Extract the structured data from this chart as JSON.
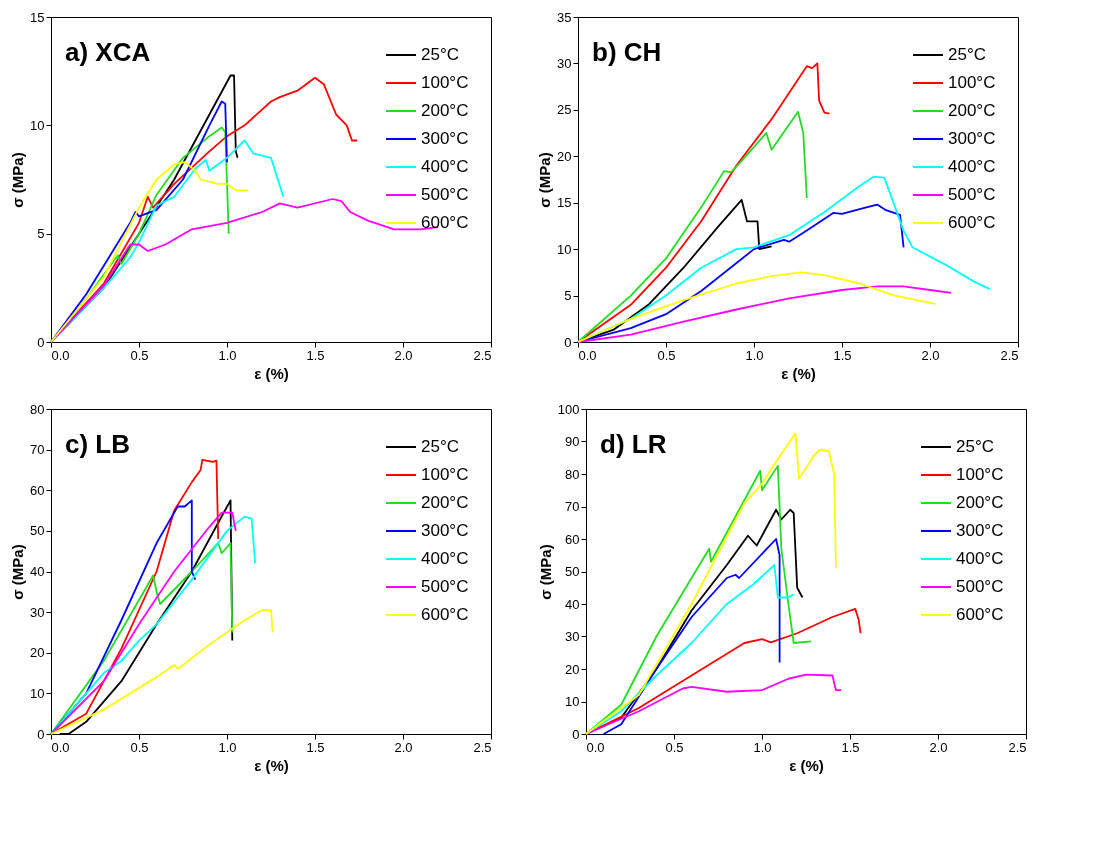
{
  "chart_data": [
    {
      "type": "line",
      "title": "a) XCA",
      "xlabel": "ε (%)",
      "ylabel": "σ (MPa)",
      "legend": "top right",
      "grid": false,
      "xlim": [
        0,
        2.5
      ],
      "xticks": [
        {
          "value": 0,
          "label": "0.0"
        },
        0.5,
        {
          "value": 1,
          "label": "1.0"
        },
        1.5,
        {
          "value": 2,
          "label": "2.0"
        },
        2.5
      ],
      "ylim": [
        0,
        15
      ],
      "yticks": [
        0,
        5,
        10,
        15
      ],
      "series": [
        {
          "name": " 25°C",
          "color": "#000000",
          "x": [
            0,
            0.3,
            0.5,
            0.7,
            0.9,
            1.02,
            1.04,
            1.05,
            1.06
          ],
          "values": [
            0,
            2.5,
            5,
            7.5,
            10.5,
            12.3,
            12.3,
            8.8,
            8.5
          ]
        },
        {
          "name": "100°C",
          "color": "#ff0000",
          "x": [
            0,
            0.3,
            0.5,
            0.55,
            0.58,
            0.7,
            0.9,
            1.0,
            1.1,
            1.25,
            1.3,
            1.4,
            1.5,
            1.55,
            1.62,
            1.68,
            1.71,
            1.74
          ],
          "values": [
            0,
            2.7,
            5.5,
            6.7,
            6.2,
            7.3,
            8.8,
            9.5,
            10,
            11.1,
            11.3,
            11.6,
            12.2,
            11.9,
            10.5,
            10,
            9.3,
            9.3
          ]
        },
        {
          "name": "200°C",
          "color": "#22dd22",
          "x": [
            0,
            0.2,
            0.38,
            0.4,
            0.5,
            0.6,
            0.75,
            0.9,
            0.97,
            0.99,
            1.01
          ],
          "values": [
            0,
            2,
            4,
            3.6,
            5,
            6.8,
            8.5,
            9.5,
            9.9,
            9.7,
            5
          ]
        },
        {
          "name": "300°C",
          "color": "#0000ff",
          "x": [
            0,
            0.2,
            0.45,
            0.48,
            0.5,
            0.6,
            0.75,
            0.9,
            0.97,
            0.99,
            1.0
          ],
          "values": [
            0,
            2.2,
            5.5,
            6,
            5.8,
            6.1,
            7.5,
            10,
            11.1,
            11,
            8.3
          ]
        },
        {
          "name": "400°C",
          "color": "#00ffff",
          "x": [
            0,
            0.3,
            0.45,
            0.5,
            0.6,
            0.7,
            0.82,
            0.88,
            0.9,
            1.0,
            1.1,
            1.15,
            1.25,
            1.32
          ],
          "values": [
            0,
            2.5,
            3.9,
            4.6,
            6.3,
            6.7,
            8,
            8.4,
            7.9,
            8.5,
            9.3,
            8.7,
            8.5,
            6.7
          ]
        },
        {
          "name": "500°C",
          "color": "#ff00ff",
          "x": [
            0,
            0.3,
            0.45,
            0.5,
            0.55,
            0.65,
            0.8,
            1.0,
            1.2,
            1.3,
            1.4,
            1.6,
            1.65,
            1.7,
            1.8,
            1.95,
            2.1,
            2.2
          ],
          "values": [
            0,
            2.6,
            4.5,
            4.5,
            4.2,
            4.5,
            5.2,
            5.5,
            6,
            6.4,
            6.2,
            6.6,
            6.5,
            6,
            5.6,
            5.2,
            5.2,
            5.3
          ]
        },
        {
          "name": "600°C",
          "color": "#ffff00",
          "x": [
            0,
            0.3,
            0.5,
            0.6,
            0.7,
            0.76,
            0.82,
            0.85,
            0.95,
            1.0,
            1.05,
            1.12
          ],
          "values": [
            0,
            3,
            6.2,
            7.5,
            8.2,
            8.3,
            7.9,
            7.5,
            7.3,
            7.3,
            7,
            7
          ]
        }
      ]
    },
    {
      "type": "line",
      "title": "b) CH",
      "xlabel": "ε (%)",
      "ylabel": "σ (MPa)",
      "legend": "top right",
      "grid": false,
      "xlim": [
        0,
        2.5
      ],
      "xticks": [
        {
          "value": 0,
          "label": "0.0"
        },
        0.5,
        {
          "value": 1,
          "label": "1.0"
        },
        1.5,
        {
          "value": 2,
          "label": "2.0"
        },
        2.5
      ],
      "ylim": [
        0,
        35
      ],
      "yticks": [
        0,
        5,
        10,
        15,
        20,
        25,
        30,
        35
      ],
      "series": [
        {
          "name": " 25°C",
          "color": "#000000",
          "x": [
            0,
            0.2,
            0.4,
            0.6,
            0.8,
            0.93,
            0.96,
            1.02,
            1.03,
            1.1
          ],
          "values": [
            0,
            1.3,
            4,
            8,
            12.5,
            15.3,
            13,
            13,
            10,
            10.3
          ]
        },
        {
          "name": "100°C",
          "color": "#ff0000",
          "x": [
            0,
            0.3,
            0.5,
            0.7,
            0.9,
            1.1,
            1.3,
            1.33,
            1.36,
            1.37,
            1.4,
            1.43
          ],
          "values": [
            0,
            4,
            8,
            13,
            19,
            24,
            29.7,
            29.5,
            30,
            26,
            24.7,
            24.6
          ]
        },
        {
          "name": "200°C",
          "color": "#22dd22",
          "x": [
            0,
            0.3,
            0.5,
            0.7,
            0.83,
            0.87,
            0.93,
            1.07,
            1.1,
            1.25,
            1.28,
            1.3
          ],
          "values": [
            0,
            5,
            9,
            14.5,
            18.4,
            18.3,
            19.5,
            22.5,
            20.7,
            24.8,
            22.5,
            15.5
          ]
        },
        {
          "name": "300°C",
          "color": "#0000ff",
          "x": [
            0,
            0.3,
            0.5,
            0.7,
            1.0,
            1.17,
            1.2,
            1.3,
            1.45,
            1.5,
            1.6,
            1.7,
            1.75,
            1.83,
            1.85
          ],
          "values": [
            0,
            1.5,
            3,
            5.5,
            10,
            11,
            10.8,
            12,
            13.9,
            13.8,
            14.3,
            14.8,
            14.2,
            13.7,
            10.2
          ]
        },
        {
          "name": "400°C",
          "color": "#00ffff",
          "x": [
            0,
            0.3,
            0.5,
            0.7,
            0.9,
            1.0,
            1.2,
            1.4,
            1.6,
            1.68,
            1.74,
            1.85,
            1.9,
            2.1,
            2.25,
            2.34
          ],
          "values": [
            0,
            2.5,
            5,
            8,
            10,
            10.2,
            11.5,
            14,
            16.8,
            17.8,
            17.7,
            12,
            10.2,
            8.2,
            6.5,
            5.7
          ]
        },
        {
          "name": "500°C",
          "color": "#ff00ff",
          "x": [
            0,
            0.3,
            0.6,
            0.9,
            1.2,
            1.5,
            1.7,
            1.85,
            2.0,
            2.12
          ],
          "values": [
            0,
            0.8,
            2.2,
            3.5,
            4.7,
            5.6,
            6,
            6,
            5.6,
            5.3
          ]
        },
        {
          "name": "600°C",
          "color": "#ffff00",
          "x": [
            0,
            0.3,
            0.6,
            0.9,
            1.1,
            1.27,
            1.4,
            1.6,
            1.8,
            2.03
          ],
          "values": [
            0,
            2.5,
            4.5,
            6.3,
            7.1,
            7.5,
            7.2,
            6.3,
            5,
            4.1
          ]
        }
      ]
    },
    {
      "type": "line",
      "title": "c) LB",
      "xlabel": "ε (%)",
      "ylabel": "σ (MPa)",
      "legend": "top right",
      "grid": false,
      "xlim": [
        0,
        2.5
      ],
      "xticks": [
        {
          "value": 0,
          "label": "0.0"
        },
        0.5,
        {
          "value": 1,
          "label": "1.0"
        },
        1.5,
        {
          "value": 2,
          "label": "2.0"
        },
        2.5
      ],
      "ylim": [
        0,
        80
      ],
      "yticks": [
        0,
        10,
        20,
        30,
        40,
        50,
        60,
        70,
        80
      ],
      "series": [
        {
          "name": " 25°C",
          "color": "#000000",
          "x": [
            0.05,
            0.1,
            0.2,
            0.4,
            0.6,
            0.8,
            0.95,
            1.02,
            1.03
          ],
          "values": [
            0,
            0,
            3,
            13,
            27,
            40,
            52,
            57.5,
            23
          ]
        },
        {
          "name": "100°C",
          "color": "#ff0000",
          "x": [
            0,
            0.2,
            0.4,
            0.6,
            0.7,
            0.8,
            0.85,
            0.86,
            0.92,
            0.94,
            0.95
          ],
          "values": [
            0,
            5,
            21,
            40,
            55,
            62,
            65,
            67.5,
            67,
            67.3,
            48
          ]
        },
        {
          "name": "200°C",
          "color": "#22dd22",
          "x": [
            0,
            0.3,
            0.5,
            0.58,
            0.6,
            0.62,
            0.8,
            0.95,
            0.97,
            1.02,
            1.03
          ],
          "values": [
            0,
            18,
            33,
            39,
            35,
            32,
            40,
            47,
            44.5,
            47,
            25
          ]
        },
        {
          "name": "300°C",
          "color": "#0000ff",
          "x": [
            0,
            0.2,
            0.4,
            0.6,
            0.72,
            0.76,
            0.8,
            0.8,
            0.82
          ],
          "values": [
            0,
            10,
            28,
            47,
            56,
            56,
            57.5,
            40,
            38
          ]
        },
        {
          "name": "400°C",
          "color": "#00ffff",
          "x": [
            0,
            0.3,
            0.4,
            0.5,
            0.6,
            0.8,
            1.0,
            1.1,
            1.14,
            1.16
          ],
          "values": [
            0,
            15,
            18,
            23,
            27,
            38,
            50,
            53.5,
            53,
            42
          ]
        },
        {
          "name": "500°C",
          "color": "#ff00ff",
          "x": [
            0,
            0.3,
            0.5,
            0.7,
            0.9,
            0.97,
            1.03,
            1.05
          ],
          "values": [
            0,
            13,
            27,
            40,
            51,
            54.5,
            54.5,
            50
          ]
        },
        {
          "name": "600°C",
          "color": "#ffff00",
          "x": [
            0,
            0.3,
            0.6,
            0.7,
            0.72,
            0.9,
            1.1,
            1.2,
            1.25,
            1.26
          ],
          "values": [
            0,
            6,
            14,
            17,
            16,
            22,
            28,
            30.5,
            30.5,
            25
          ]
        }
      ]
    },
    {
      "type": "line",
      "title": "d) LR",
      "xlabel": "ε (%)",
      "ylabel": "σ (MPa)",
      "legend": "top right",
      "grid": false,
      "xlim": [
        0,
        2.5
      ],
      "xticks": [
        {
          "value": 0,
          "label": "0.0"
        },
        0.5,
        {
          "value": 1,
          "label": "1.0"
        },
        1.5,
        {
          "value": 2,
          "label": "2.0"
        },
        2.5
      ],
      "ylim": [
        0,
        100
      ],
      "yticks": [
        0,
        10,
        20,
        30,
        40,
        50,
        60,
        70,
        80,
        90,
        100
      ],
      "series": [
        {
          "name": " 25°C",
          "color": "#000000",
          "x": [
            0,
            0.2,
            0.4,
            0.6,
            0.8,
            0.92,
            0.97,
            1.08,
            1.11,
            1.16,
            1.18,
            1.2,
            1.23
          ],
          "values": [
            0,
            5,
            20,
            38,
            52,
            61,
            58,
            69,
            66,
            69,
            68,
            45,
            42
          ]
        },
        {
          "name": "100°C",
          "color": "#ff0000",
          "x": [
            0,
            0.3,
            0.6,
            0.9,
            1.0,
            1.05,
            1.2,
            1.4,
            1.53,
            1.55,
            1.56
          ],
          "values": [
            0,
            8,
            18,
            28,
            29.2,
            28.2,
            31,
            36,
            38.5,
            35,
            31
          ]
        },
        {
          "name": "200°C",
          "color": "#22dd22",
          "x": [
            0,
            0.2,
            0.4,
            0.7,
            0.71,
            0.95,
            0.99,
            1.0,
            1.09,
            1.11,
            1.15,
            1.18,
            1.28
          ],
          "values": [
            0,
            9,
            30,
            57,
            53,
            77,
            81,
            75,
            82.5,
            57,
            40,
            28,
            28.5
          ]
        },
        {
          "name": "300°C",
          "color": "#0000ff",
          "x": [
            0.1,
            0.2,
            0.4,
            0.6,
            0.8,
            0.85,
            0.87,
            1.08,
            1.1,
            1.1
          ],
          "values": [
            0,
            3,
            20,
            36,
            48,
            49,
            48,
            60,
            55,
            22
          ]
        },
        {
          "name": "400°C",
          "color": "#00ffff",
          "x": [
            0,
            0.2,
            0.4,
            0.6,
            0.8,
            0.95,
            1.07,
            1.09,
            1.15,
            1.18
          ],
          "values": [
            0,
            7,
            18,
            28,
            40,
            46,
            52,
            42,
            42,
            43
          ]
        },
        {
          "name": "500°C",
          "color": "#ff00ff",
          "x": [
            0,
            0.3,
            0.55,
            0.6,
            0.8,
            1.0,
            1.15,
            1.25,
            1.4,
            1.42,
            1.45
          ],
          "values": [
            0,
            7,
            14,
            14.5,
            13,
            13.5,
            17,
            18.3,
            18,
            13.5,
            13.5
          ]
        },
        {
          "name": "600°C",
          "color": "#ffff00",
          "x": [
            0,
            0.3,
            0.6,
            0.9,
            1.0,
            1.07,
            1.19,
            1.21,
            1.3,
            1.33,
            1.38,
            1.41,
            1.42
          ],
          "values": [
            0,
            12,
            40,
            71,
            77,
            83,
            92.5,
            78.5,
            86,
            87.5,
            87,
            80,
            51
          ]
        }
      ]
    }
  ]
}
